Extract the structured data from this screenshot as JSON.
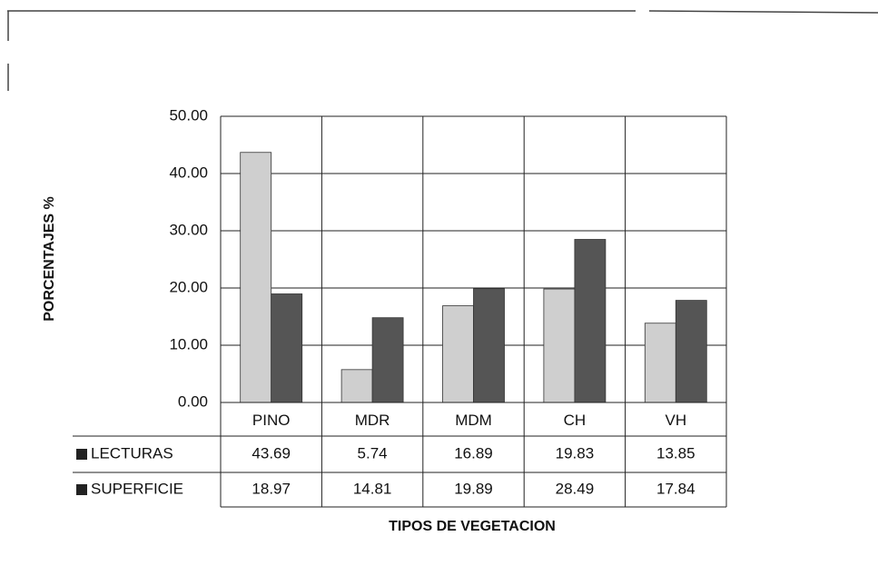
{
  "chart_data": {
    "type": "bar",
    "xlabel": "TIPOS DE VEGETACION",
    "ylabel": "PORCENTAJES %",
    "categories": [
      "PINO",
      "MDR",
      "MDM",
      "CH",
      "VH"
    ],
    "series": [
      {
        "name": "LECTURAS",
        "color": "#cfcfcf",
        "values": [
          43.69,
          5.74,
          16.89,
          19.83,
          13.85
        ]
      },
      {
        "name": "SUPERFICIE",
        "color": "#555555",
        "values": [
          18.97,
          14.81,
          19.89,
          28.49,
          17.84
        ]
      }
    ],
    "ylim": [
      0,
      50
    ],
    "yticks": [
      {
        "value": 0,
        "label": "0.00"
      },
      {
        "value": 10,
        "label": "10.00"
      },
      {
        "value": 20,
        "label": "20.00"
      },
      {
        "value": 30,
        "label": "30.00"
      },
      {
        "value": 40,
        "label": "40.00"
      },
      {
        "value": 50,
        "label": "50.00"
      }
    ],
    "grid": true,
    "legend": "bottom-left"
  }
}
